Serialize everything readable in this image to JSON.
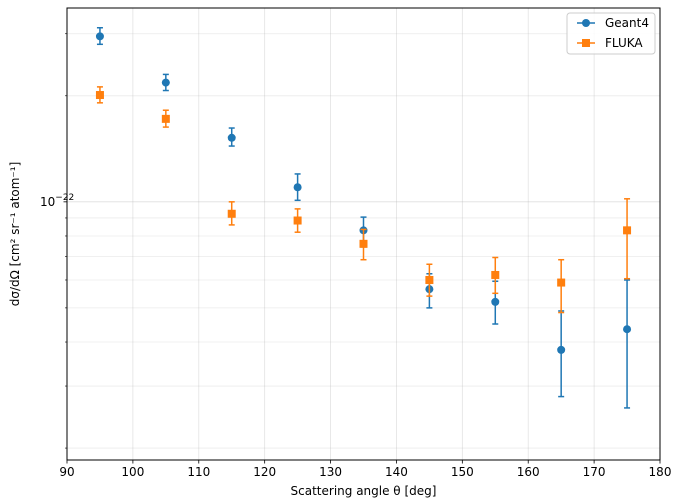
{
  "chart_data": {
    "type": "scatter",
    "title": "",
    "xlabel": "Scattering angle θ [deg]",
    "ylabel": "dσ/dΩ [cm² sr⁻¹ atom⁻¹]",
    "xlim": [
      90,
      180
    ],
    "ylim": [
      1.85e-23,
      3.55e-22
    ],
    "yscale": "log",
    "grid": true,
    "legend_position": "top-right",
    "x_ticks": [
      90,
      100,
      110,
      120,
      130,
      140,
      150,
      160,
      170,
      180
    ],
    "y_major_tick": {
      "value": 1e-22,
      "label": "10",
      "exponent": "−22"
    },
    "y_minor_ticks": [
      2e-23,
      3e-23,
      4e-23,
      5e-23,
      6e-23,
      7e-23,
      8e-23,
      9e-23,
      2e-22,
      3e-22
    ],
    "series": [
      {
        "name": "Geant4",
        "color": "#1f77b4",
        "marker": "circle",
        "points": [
          {
            "x": 95,
            "y": 2.95e-22,
            "err_lo": 2.8e-22,
            "err_hi": 3.12e-22
          },
          {
            "x": 105,
            "y": 2.18e-22,
            "err_lo": 2.07e-22,
            "err_hi": 2.3e-22
          },
          {
            "x": 115,
            "y": 1.52e-22,
            "err_lo": 1.44e-22,
            "err_hi": 1.62e-22
          },
          {
            "x": 125,
            "y": 1.1e-22,
            "err_lo": 1.01e-22,
            "err_hi": 1.2e-22
          },
          {
            "x": 135,
            "y": 8.3e-23,
            "err_lo": 7.45e-23,
            "err_hi": 9.05e-23
          },
          {
            "x": 145,
            "y": 5.65e-23,
            "err_lo": 5e-23,
            "err_hi": 6.25e-23
          },
          {
            "x": 155,
            "y": 5.2e-23,
            "err_lo": 4.5e-23,
            "err_hi": 5.95e-23
          },
          {
            "x": 165,
            "y": 3.8e-23,
            "err_lo": 2.8e-23,
            "err_hi": 4.9e-23
          },
          {
            "x": 175,
            "y": 4.35e-23,
            "err_lo": 2.6e-23,
            "err_hi": 6e-23
          }
        ]
      },
      {
        "name": "FLUKA",
        "color": "#ff7f0e",
        "marker": "square",
        "points": [
          {
            "x": 95,
            "y": 2.01e-22,
            "err_lo": 1.91e-22,
            "err_hi": 2.12e-22
          },
          {
            "x": 105,
            "y": 1.72e-22,
            "err_lo": 1.63e-22,
            "err_hi": 1.82e-22
          },
          {
            "x": 115,
            "y": 9.25e-23,
            "err_lo": 8.6e-23,
            "err_hi": 1e-22
          },
          {
            "x": 125,
            "y": 8.85e-23,
            "err_lo": 8.2e-23,
            "err_hi": 9.55e-23
          },
          {
            "x": 135,
            "y": 7.6e-23,
            "err_lo": 6.85e-23,
            "err_hi": 8.35e-23
          },
          {
            "x": 145,
            "y": 6e-23,
            "err_lo": 5.4e-23,
            "err_hi": 6.65e-23
          },
          {
            "x": 155,
            "y": 6.2e-23,
            "err_lo": 5.5e-23,
            "err_hi": 6.95e-23
          },
          {
            "x": 165,
            "y": 5.9e-23,
            "err_lo": 4.85e-23,
            "err_hi": 6.85e-23
          },
          {
            "x": 175,
            "y": 8.3e-23,
            "err_lo": 6.05e-23,
            "err_hi": 1.02e-22
          }
        ]
      }
    ]
  }
}
